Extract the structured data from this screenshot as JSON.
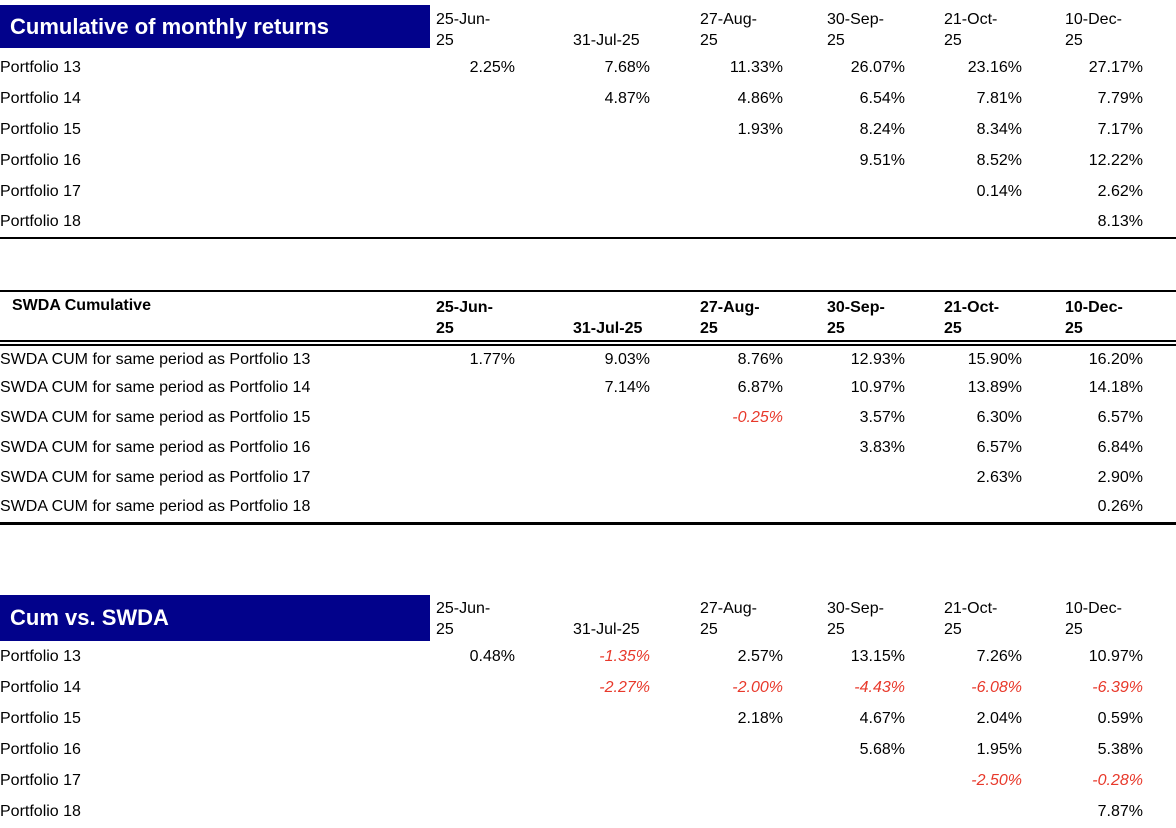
{
  "colors": {
    "title_background": "#02028b",
    "title_text": "#ffffff",
    "negative_value": "#e8392b",
    "body_text": "#000000"
  },
  "dates": [
    "25-Jun-\n25",
    "31-Jul-25",
    "27-Aug-\n25",
    "30-Sep-\n25",
    "21-Oct-\n25",
    "10-Dec-\n25"
  ],
  "table1": {
    "title": "Cumulative of monthly returns",
    "rows": [
      {
        "label": "Portfolio 13",
        "values": [
          "2.25%",
          "7.68%",
          "11.33%",
          "26.07%",
          "23.16%",
          "27.17%"
        ]
      },
      {
        "label": "Portfolio 14",
        "values": [
          "",
          "4.87%",
          "4.86%",
          "6.54%",
          "7.81%",
          "7.79%"
        ]
      },
      {
        "label": "Portfolio 15",
        "values": [
          "",
          "",
          "1.93%",
          "8.24%",
          "8.34%",
          "7.17%"
        ]
      },
      {
        "label": "Portfolio 16",
        "values": [
          "",
          "",
          "",
          "9.51%",
          "8.52%",
          "12.22%"
        ]
      },
      {
        "label": "Portfolio 17",
        "values": [
          "",
          "",
          "",
          "",
          "0.14%",
          "2.62%"
        ]
      },
      {
        "label": "Portfolio 18",
        "values": [
          "",
          "",
          "",
          "",
          "",
          "8.13%"
        ]
      }
    ]
  },
  "table2": {
    "title": "SWDA Cumulative",
    "rows": [
      {
        "label": "SWDA CUM for same period as Portfolio 13",
        "values": [
          "1.77%",
          "9.03%",
          "8.76%",
          "12.93%",
          "15.90%",
          "16.20%"
        ]
      },
      {
        "label": "SWDA CUM for same period as Portfolio 14",
        "values": [
          "",
          "7.14%",
          "6.87%",
          "10.97%",
          "13.89%",
          "14.18%"
        ]
      },
      {
        "label": "SWDA CUM for same period as Portfolio 15",
        "values": [
          "",
          "",
          "-0.25%",
          "3.57%",
          "6.30%",
          "6.57%"
        ]
      },
      {
        "label": "SWDA CUM for same period as Portfolio 16",
        "values": [
          "",
          "",
          "",
          "3.83%",
          "6.57%",
          "6.84%"
        ]
      },
      {
        "label": "SWDA CUM for same period as Portfolio 17",
        "values": [
          "",
          "",
          "",
          "",
          "2.63%",
          "2.90%"
        ]
      },
      {
        "label": "SWDA CUM for same period as Portfolio 18",
        "values": [
          "",
          "",
          "",
          "",
          "",
          "0.26%"
        ]
      }
    ]
  },
  "table3": {
    "title": "Cum vs. SWDA",
    "rows": [
      {
        "label": "Portfolio 13",
        "values": [
          "0.48%",
          "-1.35%",
          "2.57%",
          "13.15%",
          "7.26%",
          "10.97%"
        ]
      },
      {
        "label": "Portfolio 14",
        "values": [
          "",
          "-2.27%",
          "-2.00%",
          "-4.43%",
          "-6.08%",
          "-6.39%"
        ]
      },
      {
        "label": "Portfolio 15",
        "values": [
          "",
          "",
          "2.18%",
          "4.67%",
          "2.04%",
          "0.59%"
        ]
      },
      {
        "label": "Portfolio 16",
        "values": [
          "",
          "",
          "",
          "5.68%",
          "1.95%",
          "5.38%"
        ]
      },
      {
        "label": "Portfolio 17",
        "values": [
          "",
          "",
          "",
          "",
          "-2.50%",
          "-0.28%"
        ]
      },
      {
        "label": "Portfolio 18",
        "values": [
          "",
          "",
          "",
          "",
          "",
          "7.87%"
        ]
      }
    ]
  }
}
